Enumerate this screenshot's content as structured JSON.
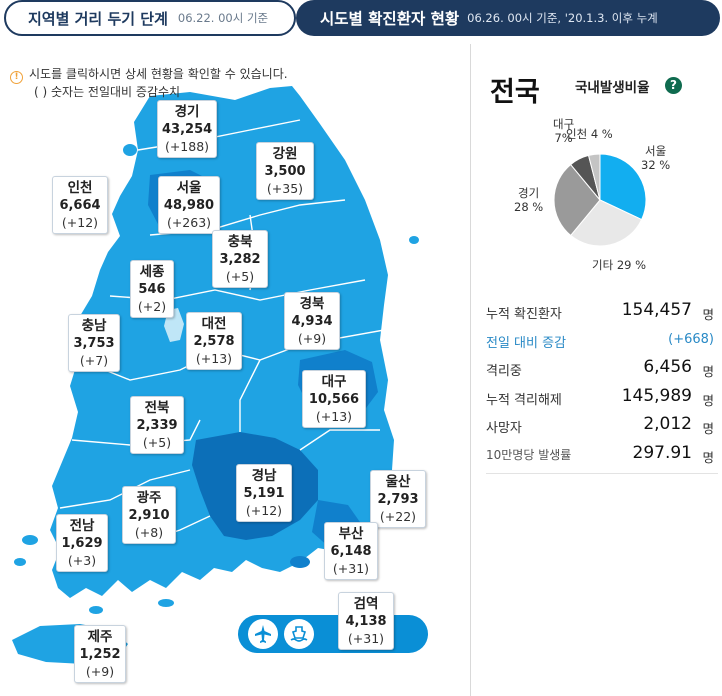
{
  "tabs": [
    {
      "title": "지역별 거리 두기 단계",
      "subtitle": "06.22. 00시 기준"
    },
    {
      "title": "시도별 확진환자 현황",
      "subtitle": "06.26. 00시 기준, '20.1.3. 이후 누계"
    }
  ],
  "notice": {
    "line1": "시도를 클릭하시면 상세 현황을 확인할 수 있습니다.",
    "line2": "( ) 숫자는 전일대비 증감수치"
  },
  "regions": [
    {
      "id": "gyeonggi",
      "name": "경기",
      "count": "43,254",
      "delta": "(+188)"
    },
    {
      "id": "gangwon",
      "name": "강원",
      "count": "3,500",
      "delta": "(+35)"
    },
    {
      "id": "incheon",
      "name": "인천",
      "count": "6,664",
      "delta": "(+12)"
    },
    {
      "id": "seoul",
      "name": "서울",
      "count": "48,980",
      "delta": "(+263)"
    },
    {
      "id": "chungbuk",
      "name": "충북",
      "count": "3,282",
      "delta": "(+5)"
    },
    {
      "id": "sejong",
      "name": "세종",
      "count": "546",
      "delta": "(+2)"
    },
    {
      "id": "chungnam",
      "name": "충남",
      "count": "3,753",
      "delta": "(+7)"
    },
    {
      "id": "daejeon",
      "name": "대전",
      "count": "2,578",
      "delta": "(+13)"
    },
    {
      "id": "gyeongbuk",
      "name": "경북",
      "count": "4,934",
      "delta": "(+9)"
    },
    {
      "id": "daegu",
      "name": "대구",
      "count": "10,566",
      "delta": "(+13)"
    },
    {
      "id": "jeonbuk",
      "name": "전북",
      "count": "2,339",
      "delta": "(+5)"
    },
    {
      "id": "ulsan",
      "name": "울산",
      "count": "2,793",
      "delta": "(+22)"
    },
    {
      "id": "gyeongnam",
      "name": "경남",
      "count": "5,191",
      "delta": "(+12)"
    },
    {
      "id": "gwangju",
      "name": "광주",
      "count": "2,910",
      "delta": "(+8)"
    },
    {
      "id": "jeonnam",
      "name": "전남",
      "count": "1,629",
      "delta": "(+3)"
    },
    {
      "id": "busan",
      "name": "부산",
      "count": "6,148",
      "delta": "(+31)"
    },
    {
      "id": "quarantine",
      "name": "검역",
      "count": "4,138",
      "delta": "(+31)"
    },
    {
      "id": "jeju",
      "name": "제주",
      "count": "1,252",
      "delta": "(+9)"
    }
  ],
  "quarantine_icons": [
    "airplane-icon",
    "ship-icon"
  ],
  "national": {
    "title": "전국",
    "ratio_label": "국내발생비율",
    "help": "?",
    "pie": {
      "slices": [
        {
          "name": "서울",
          "pct": 32,
          "label": "32 %",
          "color": "#12aef0"
        },
        {
          "name": "기타",
          "pct": 29,
          "label": "29 %",
          "color": "#e8e8e8"
        },
        {
          "name": "경기",
          "pct": 28,
          "label": "28 %",
          "color": "#9a9a9a"
        },
        {
          "name": "대구",
          "pct": 7,
          "label": "7%",
          "color": "#555555"
        },
        {
          "name": "인천",
          "pct": 4,
          "label": "4 %",
          "color": "#c4c4c4"
        }
      ]
    },
    "stats": [
      {
        "label": "누적 확진환자",
        "value": "154,457",
        "unit": "명"
      },
      {
        "label": "전일 대비 증감",
        "value": "(+668)",
        "unit": ""
      },
      {
        "label": "격리중",
        "value": "6,456",
        "unit": "명"
      },
      {
        "label": "누적 격리해제",
        "value": "145,989",
        "unit": "명"
      },
      {
        "label": "사망자",
        "value": "2,012",
        "unit": "명"
      },
      {
        "label": "10만명당 발생률",
        "value": "297.91",
        "unit": "명"
      }
    ]
  },
  "colors": {
    "navy": "#1e3a5f",
    "map_light": "#1fa3e3",
    "map_mid": "#1080cc",
    "map_dark": "#0c6fb8",
    "border": "#ffffff"
  }
}
